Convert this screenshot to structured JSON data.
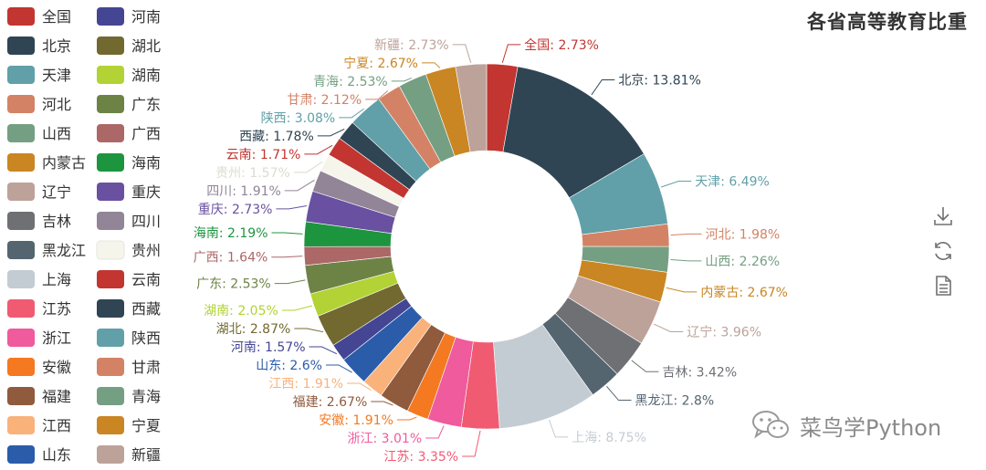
{
  "title": "各省高等教育比重",
  "watermark_text": "菜鸟学Python",
  "toolbox": [
    {
      "name": "download-icon"
    },
    {
      "name": "refresh-icon"
    },
    {
      "name": "data-view-icon"
    }
  ],
  "chart_data": {
    "type": "pie",
    "donut": true,
    "title": "各省高等教育比重",
    "legend_position": "left",
    "slices": [
      {
        "name": "全国",
        "value": 2.73,
        "color": "#c23531"
      },
      {
        "name": "北京",
        "value": 13.81,
        "color": "#2f4554"
      },
      {
        "name": "天津",
        "value": 6.49,
        "color": "#61a0a8"
      },
      {
        "name": "河北",
        "value": 1.98,
        "color": "#d48265"
      },
      {
        "name": "山西",
        "value": 2.26,
        "color": "#749f83"
      },
      {
        "name": "内蒙古",
        "value": 2.67,
        "color": "#ca8622"
      },
      {
        "name": "辽宁",
        "value": 3.96,
        "color": "#bda29a"
      },
      {
        "name": "吉林",
        "value": 3.42,
        "color": "#6e7074"
      },
      {
        "name": "黑龙江",
        "value": 2.8,
        "color": "#546570"
      },
      {
        "name": "上海",
        "value": 8.75,
        "color": "#c4ccd3"
      },
      {
        "name": "江苏",
        "value": 3.35,
        "color": "#f05b72"
      },
      {
        "name": "浙江",
        "value": 3.01,
        "color": "#ef5b9c"
      },
      {
        "name": "安徽",
        "value": 1.91,
        "color": "#f47920"
      },
      {
        "name": "福建",
        "value": 2.67,
        "color": "#905a3d"
      },
      {
        "name": "江西",
        "value": 1.91,
        "color": "#fab27b"
      },
      {
        "name": "山东",
        "value": 2.6,
        "color": "#2a5caa"
      },
      {
        "name": "河南",
        "value": 1.57,
        "color": "#444693"
      },
      {
        "name": "湖北",
        "value": 2.87,
        "color": "#726930"
      },
      {
        "name": "湖南",
        "value": 2.05,
        "color": "#b2d235"
      },
      {
        "name": "广东",
        "value": 2.53,
        "color": "#6d8346"
      },
      {
        "name": "广西",
        "value": 1.64,
        "color": "#ac6767"
      },
      {
        "name": "海南",
        "value": 2.19,
        "color": "#1d953f"
      },
      {
        "name": "重庆",
        "value": 2.73,
        "color": "#6950a1"
      },
      {
        "name": "四川",
        "value": 1.91,
        "color": "#918597"
      },
      {
        "name": "贵州",
        "value": 1.57,
        "color": "#f6f5ec"
      },
      {
        "name": "云南",
        "value": 1.71,
        "color": "#c23531"
      },
      {
        "name": "西藏",
        "value": 1.78,
        "color": "#2f4554"
      },
      {
        "name": "陕西",
        "value": 3.08,
        "color": "#61a0a8"
      },
      {
        "name": "甘肃",
        "value": 2.12,
        "color": "#d48265"
      },
      {
        "name": "青海",
        "value": 2.53,
        "color": "#749f83"
      },
      {
        "name": "宁夏",
        "value": 2.67,
        "color": "#ca8622"
      },
      {
        "name": "新疆",
        "value": 2.73,
        "color": "#bda29a"
      }
    ]
  }
}
